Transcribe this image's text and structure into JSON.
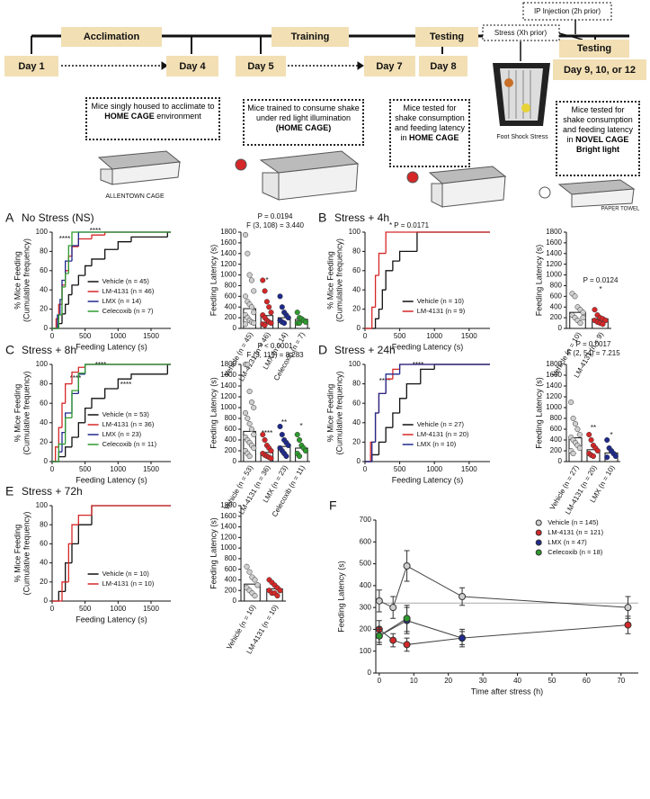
{
  "timeline": {
    "days": [
      "Day 1",
      "Day 4",
      "Day 5",
      "Day 7",
      "Day 8",
      "Day 9, 10, or 12"
    ],
    "phases": [
      "Acclimation",
      "Training",
      "Testing",
      "Testing"
    ],
    "stress": "Stress (Xh prior)",
    "injection": "IP Injection (2h prior)",
    "notes": [
      {
        "parts": [
          "Mice singly housed to acclimate to",
          "HOME CAGE",
          "environment"
        ]
      },
      {
        "parts": [
          "Mice trained to consume shake under red light illumination",
          "(HOME CAGE)"
        ]
      },
      {
        "parts": [
          "Mice tested for shake consumption and feeding latency in",
          "HOME CAGE"
        ]
      },
      {
        "parts": [
          "Mice tested for shake consumption and feeding latency in",
          "NOVEL CAGE",
          "Bright light"
        ]
      }
    ],
    "image_labels": [
      "ALLENTOWN CAGE",
      "Foot Shock Stress",
      "PAPER TOWEL"
    ]
  },
  "chart_data": [
    {
      "type": "line",
      "step": true,
      "panel": "A",
      "title": "No Stress (NS)",
      "xlabel": "Feeding Latency (s)",
      "ylabel": [
        "% Mice Feeding",
        "(Cumulative frequency)"
      ],
      "xlim": [
        0,
        1800
      ],
      "ylim": [
        0,
        100
      ],
      "xticks": [
        0,
        500,
        1000,
        1500
      ],
      "yticks": [
        0,
        20,
        40,
        60,
        80,
        100
      ],
      "series": [
        {
          "name": "Vehicle (n = 45)",
          "color": "#111111",
          "x": [
            0,
            100,
            150,
            200,
            250,
            300,
            400,
            500,
            600,
            800,
            1000,
            1200,
            1750
          ],
          "values": [
            0,
            5,
            15,
            25,
            35,
            45,
            55,
            65,
            72,
            82,
            90,
            95,
            100
          ]
        },
        {
          "name": "LM-4131 (n = 46)",
          "color": "#d62728",
          "x": [
            0,
            60,
            100,
            150,
            200,
            250,
            300,
            400,
            600,
            800
          ],
          "values": [
            0,
            10,
            25,
            45,
            60,
            75,
            85,
            93,
            97,
            100
          ]
        },
        {
          "name": "LMX (n = 14)",
          "color": "#1f2a8c",
          "x": [
            0,
            80,
            120,
            150,
            200,
            300,
            400
          ],
          "values": [
            0,
            14,
            30,
            50,
            70,
            86,
            100
          ]
        },
        {
          "name": "Celecoxib (n = 7)",
          "color": "#2e9a2e",
          "x": [
            0,
            100,
            150,
            200,
            250,
            300
          ],
          "values": [
            0,
            14,
            43,
            57,
            86,
            100
          ]
        }
      ],
      "annotations": [
        "****",
        "****"
      ]
    },
    {
      "type": "bar",
      "ylabel": [
        "Feeding Latency (s)"
      ],
      "ylim": [
        0,
        1800
      ],
      "yticks": [
        0,
        200,
        400,
        600,
        800,
        1000,
        1200,
        1400,
        1600,
        1800
      ],
      "categories": [
        "Vehicle (n = 45)",
        "LM-4131 (n = 46)",
        "LMX (n = 14)",
        "Celecoxib (n = 7)"
      ],
      "colors": [
        "#cfcfcf",
        "#d62728",
        "#1f2a8c",
        "#2e9a2e"
      ],
      "values": [
        370,
        240,
        200,
        170
      ],
      "points": [
        [
          1750,
          1400,
          1000,
          900,
          700,
          600,
          500,
          450,
          400,
          300,
          250,
          200,
          150,
          120,
          100,
          80
        ],
        [
          900,
          700,
          500,
          400,
          300,
          250,
          200,
          150,
          120,
          100,
          80,
          60
        ],
        [
          600,
          400,
          300,
          250,
          200,
          150,
          120,
          100
        ],
        [
          300,
          200,
          180,
          150,
          120,
          100,
          100
        ]
      ],
      "annotations": [
        "P = 0.0194",
        "F (3, 108) = 3.440",
        "*"
      ]
    },
    {
      "type": "line",
      "step": true,
      "panel": "B",
      "title": "Stress + 4h",
      "xlabel": "Feeding Latency (s)",
      "ylabel": [
        "% Mice Feeding",
        "(Cumulative frequency)"
      ],
      "xlim": [
        0,
        1800
      ],
      "ylim": [
        0,
        100
      ],
      "xticks": [
        0,
        500,
        1000,
        1500
      ],
      "yticks": [
        0,
        20,
        40,
        60,
        80,
        100
      ],
      "series": [
        {
          "name": "Vehicle (n = 10)",
          "color": "#111111",
          "x": [
            0,
            150,
            200,
            250,
            300,
            400,
            500,
            750
          ],
          "values": [
            0,
            10,
            20,
            40,
            60,
            70,
            80,
            100
          ]
        },
        {
          "name": "LM-4131 (n = 9)",
          "color": "#d62728",
          "x": [
            0,
            100,
            150,
            200,
            300
          ],
          "values": [
            0,
            22,
            55,
            78,
            100
          ]
        }
      ],
      "annotations": [
        "* P = 0.0171"
      ]
    },
    {
      "type": "bar",
      "ylabel": [
        "Feeding Latency (s)"
      ],
      "ylim": [
        0,
        1800
      ],
      "yticks": [
        0,
        200,
        400,
        600,
        800,
        1000,
        1200,
        1400,
        1600,
        1800
      ],
      "categories": [
        "Vehicle (n = 10)",
        "LM-4131 (n = 9)"
      ],
      "colors": [
        "#cfcfcf",
        "#d62728"
      ],
      "values": [
        300,
        180
      ],
      "points": [
        [
          650,
          600,
          400,
          350,
          300,
          250,
          200,
          150,
          100,
          200
        ],
        [
          350,
          250,
          200,
          180,
          150,
          150,
          120,
          100,
          80
        ]
      ],
      "annotations": [
        "P = 0.0124",
        "*"
      ]
    },
    {
      "type": "line",
      "step": true,
      "panel": "C",
      "title": "Stress + 8h",
      "xlabel": "Feeding Latency (s)",
      "ylabel": [
        "% Mice Feeding",
        "(Cumulative frequency)"
      ],
      "xlim": [
        0,
        1800
      ],
      "ylim": [
        0,
        100
      ],
      "xticks": [
        0,
        500,
        1000,
        1500
      ],
      "yticks": [
        0,
        20,
        40,
        60,
        80,
        100
      ],
      "series": [
        {
          "name": "Vehicle (n = 53)",
          "color": "#111111",
          "x": [
            0,
            100,
            200,
            300,
            400,
            500,
            600,
            800,
            1000,
            1200,
            1750
          ],
          "values": [
            0,
            5,
            15,
            25,
            40,
            55,
            65,
            75,
            85,
            90,
            100
          ]
        },
        {
          "name": "LM-4131 (n = 36)",
          "color": "#d62728",
          "x": [
            0,
            50,
            100,
            150,
            200,
            300,
            400,
            500
          ],
          "values": [
            0,
            15,
            35,
            60,
            80,
            92,
            97,
            100
          ]
        },
        {
          "name": "LMX (n = 23)",
          "color": "#1f2a8c",
          "x": [
            0,
            100,
            150,
            200,
            300,
            400,
            500
          ],
          "values": [
            0,
            10,
            30,
            50,
            70,
            90,
            100
          ]
        },
        {
          "name": "Celecoxib (n = 11)",
          "color": "#2e9a2e",
          "x": [
            0,
            100,
            200,
            300,
            400,
            500
          ],
          "values": [
            0,
            18,
            45,
            73,
            91,
            100
          ]
        }
      ],
      "annotations": [
        "****",
        "****",
        "****"
      ]
    },
    {
      "type": "bar",
      "ylabel": [
        "Feeding Latency (s)"
      ],
      "ylim": [
        0,
        1800
      ],
      "yticks": [
        0,
        200,
        400,
        600,
        800,
        1000,
        1200,
        1400,
        1600,
        1800
      ],
      "categories": [
        "Vehicle (n = 53)",
        "LM-4131 (n = 36)",
        "LMX (n = 23)",
        "Celecoxib (n = 11)"
      ],
      "colors": [
        "#cfcfcf",
        "#d62728",
        "#1f2a8c",
        "#2e9a2e"
      ],
      "values": [
        560,
        170,
        280,
        250
      ],
      "points": [
        [
          1800,
          1800,
          1300,
          1100,
          1000,
          900,
          800,
          700,
          600,
          500,
          450,
          400,
          350,
          300,
          250,
          200,
          150,
          100
        ],
        [
          500,
          400,
          300,
          250,
          200,
          150,
          120,
          100,
          80,
          60
        ],
        [
          650,
          500,
          400,
          350,
          300,
          250,
          200,
          150,
          100
        ],
        [
          500,
          400,
          300,
          250,
          200,
          150,
          100
        ]
      ],
      "annotations": [
        "P < 0.0001",
        "F (3, 119) = 8.283",
        "****",
        "**",
        "*"
      ]
    },
    {
      "type": "line",
      "step": true,
      "panel": "D",
      "title": "Stress + 24h",
      "xlabel": "Feeding Latency (s)",
      "ylabel": [
        "% Mice Feeding",
        "(Cumulative frequency)"
      ],
      "xlim": [
        0,
        1800
      ],
      "ylim": [
        0,
        100
      ],
      "xticks": [
        0,
        500,
        1000,
        1500
      ],
      "yticks": [
        0,
        20,
        40,
        60,
        80,
        100
      ],
      "series": [
        {
          "name": "Vehicle (n = 27)",
          "color": "#111111",
          "x": [
            0,
            100,
            200,
            300,
            400,
            500,
            600,
            800,
            1000
          ],
          "values": [
            0,
            7,
            20,
            35,
            50,
            65,
            80,
            95,
            100
          ]
        },
        {
          "name": "LM-4131 (n = 20)",
          "color": "#d62728",
          "x": [
            0,
            80,
            150,
            200,
            300,
            400,
            500
          ],
          "values": [
            0,
            20,
            50,
            70,
            85,
            95,
            100
          ]
        },
        {
          "name": "LMX (n = 10)",
          "color": "#1f2a8c",
          "x": [
            0,
            100,
            150,
            200,
            300,
            500
          ],
          "values": [
            0,
            20,
            50,
            70,
            90,
            100
          ]
        }
      ],
      "annotations": [
        "****",
        "****"
      ]
    },
    {
      "type": "bar",
      "ylabel": [
        "Feeding Latency (s)"
      ],
      "ylim": [
        0,
        1800
      ],
      "yticks": [
        0,
        200,
        400,
        600,
        800,
        1000,
        1200,
        1400,
        1600,
        1800
      ],
      "categories": [
        "Vehicle (n = 27)",
        "LM-4131 (n = 20)",
        "LMX (n = 10)"
      ],
      "colors": [
        "#cfcfcf",
        "#d62728",
        "#1f2a8c"
      ],
      "values": [
        440,
        220,
        160
      ],
      "points": [
        [
          1100,
          800,
          700,
          600,
          500,
          450,
          400,
          350,
          300,
          250,
          200,
          150
        ],
        [
          500,
          400,
          300,
          250,
          200,
          150,
          120,
          100
        ],
        [
          400,
          250,
          200,
          150,
          100,
          80
        ]
      ],
      "annotations": [
        "P = 0.0017",
        "F (2, 54) = 7.215",
        "**",
        "*"
      ]
    },
    {
      "type": "line",
      "step": true,
      "panel": "E",
      "title": "Stress + 72h",
      "xlabel": "Feeding Latency (s)",
      "ylabel": [
        "% Mice Feeding",
        "(Cumulative frequency)"
      ],
      "xlim": [
        0,
        1800
      ],
      "ylim": [
        0,
        100
      ],
      "xticks": [
        0,
        500,
        1000,
        1500
      ],
      "yticks": [
        0,
        20,
        40,
        60,
        80,
        100
      ],
      "series": [
        {
          "name": "Vehicle (n = 10)",
          "color": "#111111",
          "x": [
            0,
            100,
            200,
            300,
            400,
            600
          ],
          "values": [
            0,
            10,
            40,
            60,
            80,
            100
          ]
        },
        {
          "name": "LM-4131 (n = 10)",
          "color": "#d62728",
          "x": [
            0,
            150,
            250,
            300,
            400,
            600
          ],
          "values": [
            0,
            20,
            60,
            80,
            90,
            100
          ]
        }
      ],
      "annotations": []
    },
    {
      "type": "bar",
      "ylabel": [
        "Feeding Latency (s)"
      ],
      "ylim": [
        0,
        1800
      ],
      "yticks": [
        0,
        200,
        400,
        600,
        800,
        1000,
        1200,
        1400,
        1600,
        1800
      ],
      "categories": [
        "Vehicle (n = 10)",
        "LM-4131 (n = 10)"
      ],
      "colors": [
        "#cfcfcf",
        "#d62728"
      ],
      "values": [
        320,
        230
      ],
      "points": [
        [
          650,
          550,
          450,
          400,
          300,
          250,
          200,
          150,
          100,
          300
        ],
        [
          400,
          350,
          300,
          250,
          200,
          200,
          150,
          150,
          100,
          200
        ]
      ],
      "annotations": []
    },
    {
      "type": "errorline",
      "panel": "F",
      "xlabel": "Time after stress (h)",
      "ylabel": [
        "Feeding Latency (s)"
      ],
      "xlim": [
        -1,
        75
      ],
      "ylim": [
        0,
        700
      ],
      "xticks": [
        0,
        10,
        20,
        30,
        40,
        50,
        60,
        70
      ],
      "yticks": [
        0,
        100,
        200,
        300,
        400,
        500,
        600,
        700
      ],
      "reference_line": 320,
      "series": [
        {
          "name": "Vehicle (n = 145)",
          "color": "#cfcfcf",
          "x": [
            0,
            4,
            8,
            24,
            72
          ],
          "values": [
            330,
            300,
            490,
            350,
            300
          ],
          "errors": [
            50,
            50,
            70,
            40,
            50
          ]
        },
        {
          "name": "LM-4131 (n = 121)",
          "color": "#d62728",
          "x": [
            0,
            4,
            8,
            24,
            72
          ],
          "values": [
            200,
            150,
            130,
            160,
            220
          ],
          "errors": [
            40,
            30,
            30,
            30,
            40
          ]
        },
        {
          "name": "LMX (n = 47)",
          "color": "#1f2a8c",
          "x": [
            0,
            8,
            24
          ],
          "values": [
            170,
            240,
            160
          ],
          "errors": [
            30,
            60,
            40
          ]
        },
        {
          "name": "Celecoxib (n = 18)",
          "color": "#2e9a2e",
          "x": [
            0,
            8
          ],
          "values": [
            170,
            250
          ],
          "errors": [
            40,
            60
          ]
        }
      ]
    }
  ]
}
